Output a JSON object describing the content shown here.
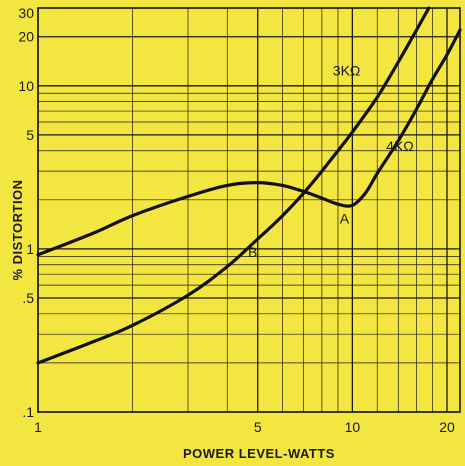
{
  "chart_data": {
    "type": "line",
    "title": "",
    "xlabel": "POWER LEVEL-WATTS",
    "ylabel": "% DISTORTION",
    "x_scale": "log",
    "y_scale": "log",
    "xlim": [
      1,
      22
    ],
    "ylim": [
      0.1,
      30
    ],
    "x_ticks": [
      {
        "value": 1,
        "label": "1"
      },
      {
        "value": 5,
        "label": "5"
      },
      {
        "value": 10,
        "label": "10"
      },
      {
        "value": 20,
        "label": "20"
      }
    ],
    "y_ticks": [
      {
        "value": 0.1,
        "label": ".1"
      },
      {
        "value": 0.5,
        "label": ".5"
      },
      {
        "value": 1,
        "label": "1"
      },
      {
        "value": 5,
        "label": "5"
      },
      {
        "value": 10,
        "label": "10"
      },
      {
        "value": 20,
        "label": "20"
      },
      {
        "value": 30,
        "label": "30"
      }
    ],
    "grid": true,
    "series": [
      {
        "name": "3KΩ",
        "x": [
          1,
          1.5,
          2,
          3,
          4,
          5,
          6,
          7,
          8,
          9,
          10,
          12,
          14,
          16,
          17.5
        ],
        "y": [
          0.2,
          0.27,
          0.34,
          0.52,
          0.78,
          1.15,
          1.6,
          2.2,
          3.0,
          4.0,
          5.2,
          8.5,
          14.0,
          22.0,
          30.0
        ]
      },
      {
        "name": "4KΩ",
        "x": [
          1,
          1.5,
          2,
          3,
          4,
          5,
          6,
          7,
          8,
          9,
          10,
          11,
          12,
          14,
          16,
          18,
          20,
          22
        ],
        "y": [
          0.92,
          1.25,
          1.6,
          2.1,
          2.45,
          2.55,
          2.45,
          2.25,
          2.05,
          1.88,
          1.85,
          2.2,
          2.9,
          4.6,
          7.2,
          11.0,
          15.5,
          22.0
        ]
      }
    ],
    "annotations": [
      {
        "text": "A",
        "x": 9.6,
        "y": 1.85
      },
      {
        "text": "B",
        "x": 4.9,
        "y": 1.15
      }
    ]
  }
}
